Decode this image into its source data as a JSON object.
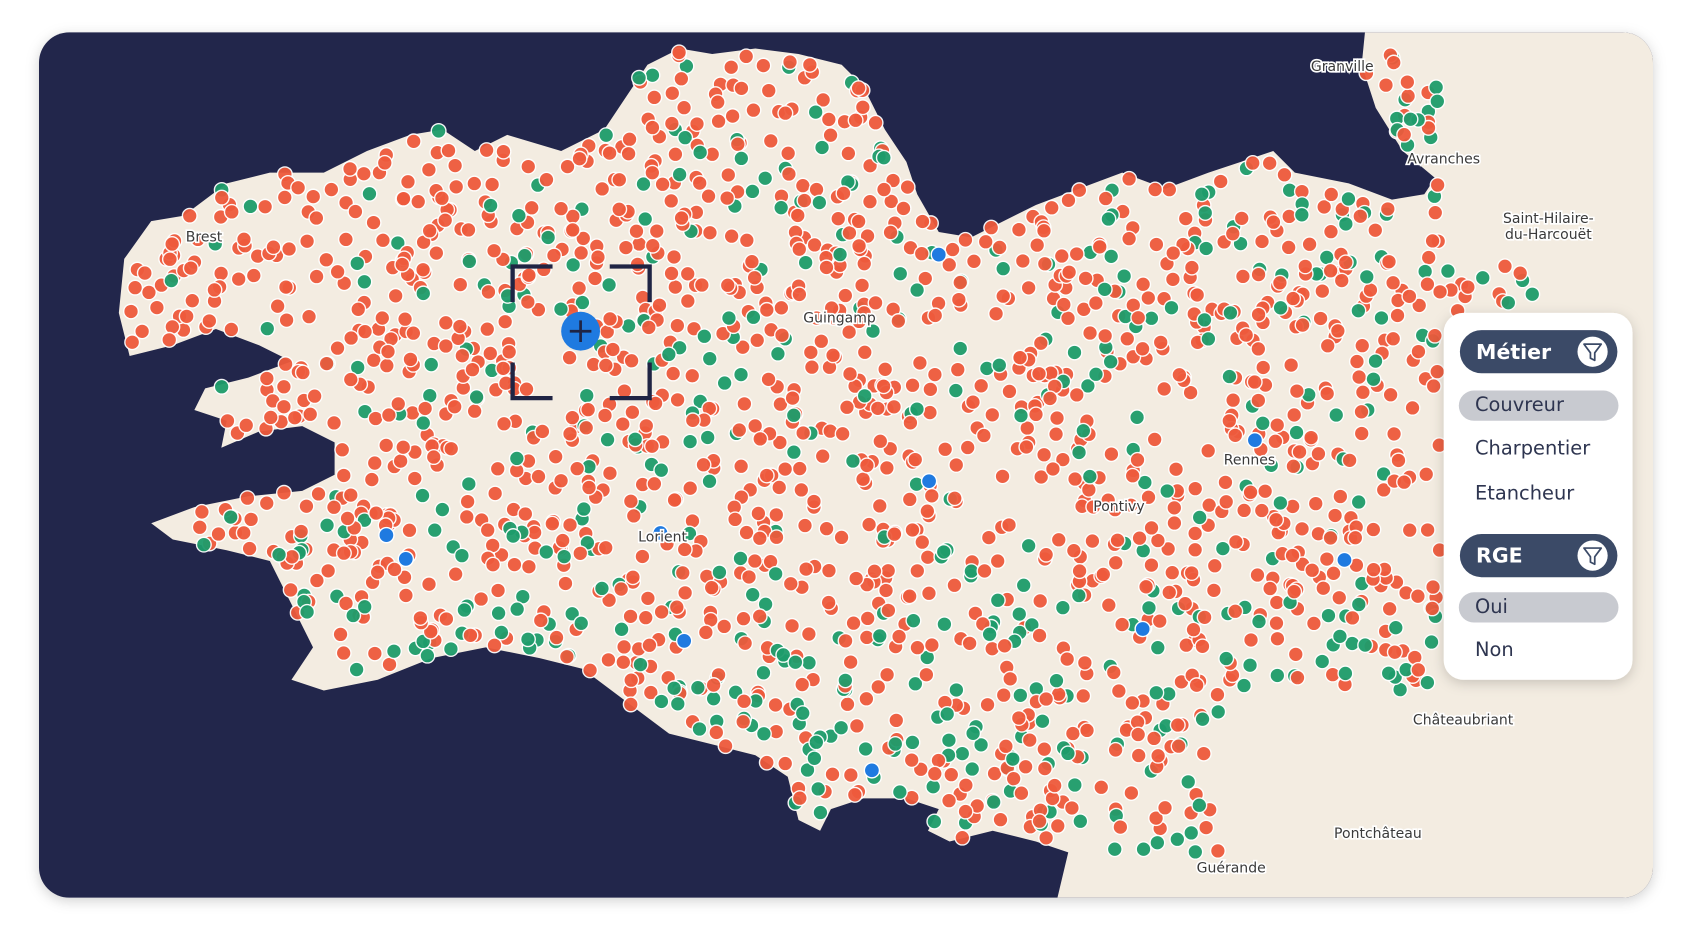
{
  "map": {
    "labels": [
      "Granville",
      "Avranches",
      "Saint-Hilaire-",
      "du-Harcouët",
      "Brest",
      "Guingamp",
      "Rennes",
      "Châteaubriant",
      "Pontchâteau",
      "Guérande",
      "Lorient",
      "Pontivy"
    ]
  },
  "filters": {
    "groups": [
      {
        "title": "Métier",
        "options": [
          "Couvreur",
          "Charpentier",
          "Etancheur"
        ],
        "selected": 0
      },
      {
        "title": "RGE",
        "options": [
          "Oui",
          "Non"
        ],
        "selected": 0
      }
    ]
  }
}
